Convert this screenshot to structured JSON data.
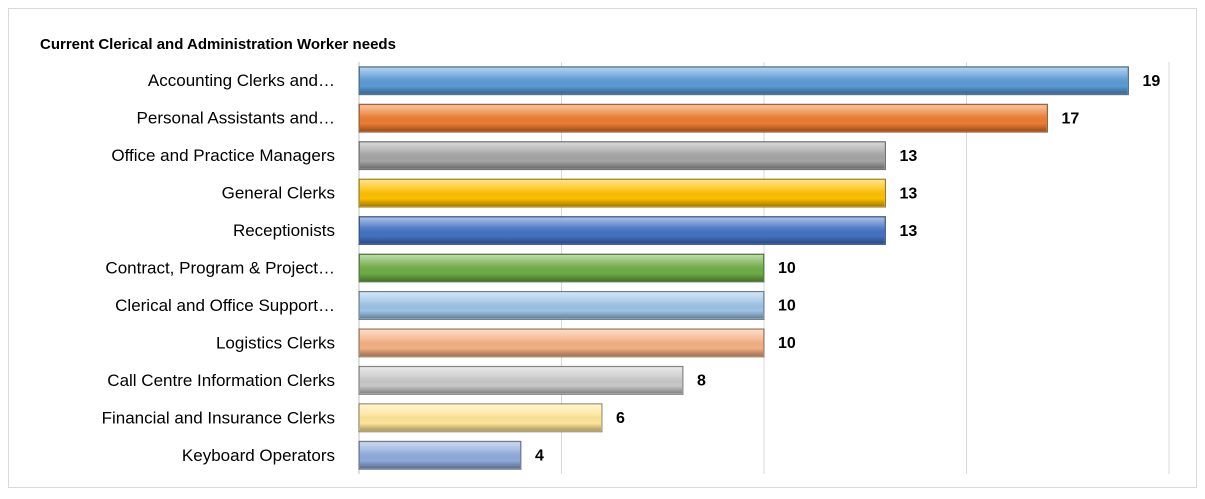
{
  "chart_data": {
    "type": "hbar",
    "title": "Current Clerical and Administration Worker needs",
    "categories": [
      "Accounting Clerks and…",
      "Personal Assistants and…",
      "Office and Practice Managers",
      "General Clerks",
      "Receptionists",
      "Contract, Program & Project…",
      "Clerical and Office Support…",
      "Logistics Clerks",
      "Call Centre Information Clerks",
      "Financial and Insurance Clerks",
      "Keyboard Operators"
    ],
    "values": [
      19,
      17,
      13,
      13,
      13,
      10,
      10,
      10,
      8,
      6,
      4
    ],
    "colors": [
      "#5b9bd5",
      "#ed7d31",
      "#a5a5a5",
      "#ffc000",
      "#4472c4",
      "#70ad47",
      "#9dc3e6",
      "#f4b183",
      "#c9c9c9",
      "#ffe699",
      "#8faadc"
    ],
    "xlim": [
      0,
      20
    ],
    "xticks": [
      0,
      5,
      10,
      15,
      20
    ],
    "grid": true
  }
}
